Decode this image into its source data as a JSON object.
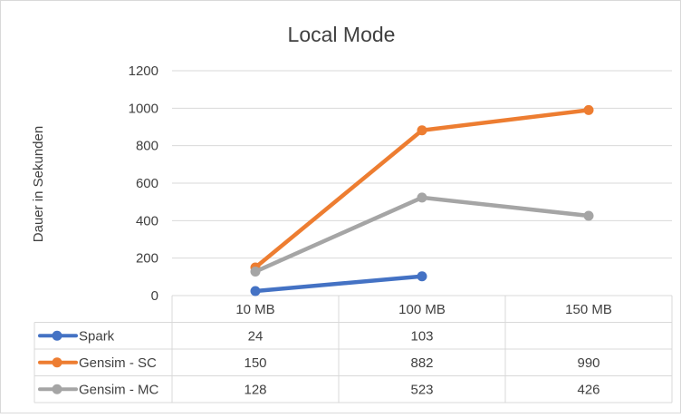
{
  "chart_data": {
    "type": "line",
    "title": "Local Mode",
    "xlabel": "",
    "ylabel": "Dauer in Sekunden",
    "ylim": [
      0,
      1200
    ],
    "yticks": [
      0,
      200,
      400,
      600,
      800,
      1000,
      1200
    ],
    "categories": [
      "10 MB",
      "100 MB",
      "150 MB"
    ],
    "grid": true,
    "legend": "data-table",
    "series": [
      {
        "name": "Spark",
        "values": [
          24,
          103,
          null
        ],
        "labels": [
          "24",
          "103",
          ""
        ],
        "color": "#4472C4"
      },
      {
        "name": "Gensim - SC",
        "values": [
          150,
          882,
          990
        ],
        "labels": [
          "150",
          "882",
          "990"
        ],
        "color": "#ED7D31"
      },
      {
        "name": "Gensim - MC",
        "values": [
          128,
          523,
          426
        ],
        "labels": [
          "128",
          "523",
          "426"
        ],
        "color": "#A5A5A5"
      }
    ]
  }
}
